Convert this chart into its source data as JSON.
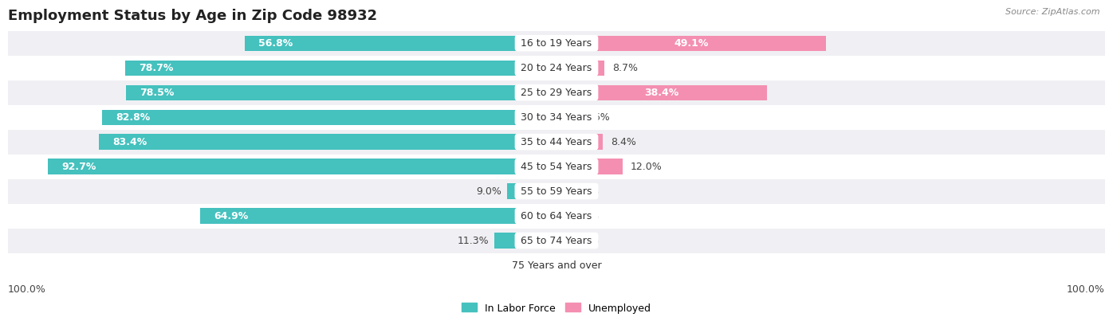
{
  "title": "Employment Status by Age in Zip Code 98932",
  "source": "Source: ZipAtlas.com",
  "categories": [
    "16 to 19 Years",
    "20 to 24 Years",
    "25 to 29 Years",
    "30 to 34 Years",
    "35 to 44 Years",
    "45 to 54 Years",
    "55 to 59 Years",
    "60 to 64 Years",
    "65 to 74 Years",
    "75 Years and over"
  ],
  "labor_force": [
    56.8,
    78.7,
    78.5,
    82.8,
    83.4,
    92.7,
    9.0,
    64.9,
    11.3,
    0.0
  ],
  "unemployed": [
    49.1,
    8.7,
    38.4,
    3.6,
    8.4,
    12.0,
    0.0,
    0.0,
    0.0,
    0.0
  ],
  "labor_force_color": "#45c1be",
  "unemployed_color": "#f48fb1",
  "row_colors": [
    "#f0f0f4",
    "#ffffff",
    "#f0f0f4",
    "#ffffff",
    "#f0f0f4",
    "#ffffff",
    "#f0f0f4",
    "#ffffff",
    "#f0f0f4",
    "#ffffff"
  ],
  "bar_height": 0.62,
  "xlim": 100,
  "legend_labels": [
    "In Labor Force",
    "Unemployed"
  ],
  "x_axis_left_label": "100.0%",
  "x_axis_right_label": "100.0%",
  "title_fontsize": 13,
  "label_fontsize": 9,
  "category_fontsize": 9,
  "lf_threshold_inside": 20,
  "un_threshold_inside": 15
}
